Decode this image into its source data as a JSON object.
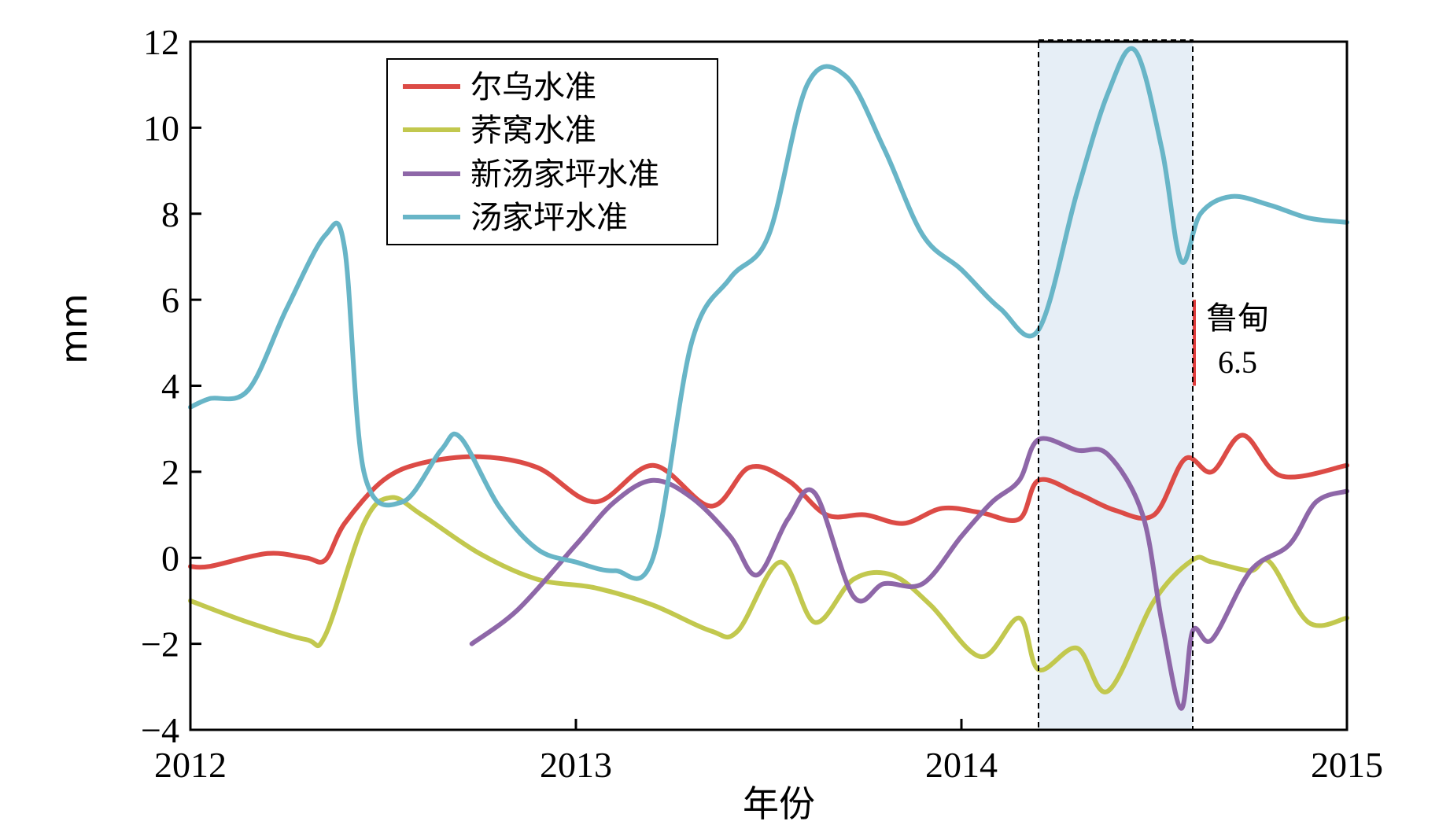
{
  "chart_data": {
    "type": "line",
    "xlabel": "年份",
    "ylabel": "mm",
    "xlim": [
      2012,
      2015
    ],
    "ylim": [
      -4,
      12
    ],
    "xticks": [
      2012,
      2013,
      2014,
      2015
    ],
    "yticks": [
      -4,
      -2,
      0,
      2,
      4,
      6,
      8,
      10,
      12
    ],
    "ytick_labels": [
      "−4",
      "−2",
      "0",
      "2",
      "4",
      "6",
      "8",
      "10",
      "12"
    ],
    "grid": false,
    "legend_position": "top-left",
    "highlight": {
      "x_start": 2014.2,
      "x_end": 2014.6,
      "color": "#e6eef6"
    },
    "annotation": {
      "label": "鲁甸",
      "value": "6.5",
      "x": 2014.6,
      "y_from": 4.0,
      "y_to": 6.0,
      "color": "#e03c3c"
    },
    "series": [
      {
        "name": "尔乌水准",
        "color": "#dc4b46",
        "points": [
          [
            2012.0,
            -0.2
          ],
          [
            2012.05,
            -0.2
          ],
          [
            2012.2,
            0.1
          ],
          [
            2012.3,
            0.0
          ],
          [
            2012.35,
            -0.05
          ],
          [
            2012.4,
            0.8
          ],
          [
            2012.5,
            1.8
          ],
          [
            2012.6,
            2.2
          ],
          [
            2012.75,
            2.35
          ],
          [
            2012.9,
            2.1
          ],
          [
            2013.05,
            1.3
          ],
          [
            2013.2,
            2.15
          ],
          [
            2013.35,
            1.2
          ],
          [
            2013.45,
            2.1
          ],
          [
            2013.55,
            1.8
          ],
          [
            2013.65,
            1.0
          ],
          [
            2013.75,
            1.0
          ],
          [
            2013.85,
            0.8
          ],
          [
            2013.95,
            1.15
          ],
          [
            2014.05,
            1.05
          ],
          [
            2014.15,
            0.9
          ],
          [
            2014.2,
            1.8
          ],
          [
            2014.3,
            1.5
          ],
          [
            2014.4,
            1.1
          ],
          [
            2014.5,
            1.0
          ],
          [
            2014.58,
            2.3
          ],
          [
            2014.65,
            2.0
          ],
          [
            2014.73,
            2.85
          ],
          [
            2014.83,
            1.9
          ],
          [
            2015.0,
            2.15
          ]
        ]
      },
      {
        "name": "荞窝水准",
        "color": "#c2c84e",
        "points": [
          [
            2012.0,
            -1.0
          ],
          [
            2012.15,
            -1.5
          ],
          [
            2012.3,
            -1.9
          ],
          [
            2012.35,
            -1.8
          ],
          [
            2012.45,
            0.8
          ],
          [
            2012.52,
            1.4
          ],
          [
            2012.6,
            1.0
          ],
          [
            2012.75,
            0.1
          ],
          [
            2012.9,
            -0.5
          ],
          [
            2013.05,
            -0.7
          ],
          [
            2013.2,
            -1.1
          ],
          [
            2013.35,
            -1.7
          ],
          [
            2013.42,
            -1.7
          ],
          [
            2013.53,
            -0.1
          ],
          [
            2013.62,
            -1.5
          ],
          [
            2013.72,
            -0.5
          ],
          [
            2013.82,
            -0.4
          ],
          [
            2013.92,
            -1.1
          ],
          [
            2014.05,
            -2.3
          ],
          [
            2014.15,
            -1.4
          ],
          [
            2014.2,
            -2.6
          ],
          [
            2014.3,
            -2.1
          ],
          [
            2014.38,
            -3.1
          ],
          [
            2014.5,
            -1.0
          ],
          [
            2014.6,
            -0.05
          ],
          [
            2014.65,
            -0.1
          ],
          [
            2014.75,
            -0.3
          ],
          [
            2014.8,
            -0.1
          ],
          [
            2014.9,
            -1.5
          ],
          [
            2015.0,
            -1.4
          ]
        ]
      },
      {
        "name": "新汤家坪水准",
        "color": "#8e67a8",
        "points": [
          [
            2012.73,
            -2.0
          ],
          [
            2012.85,
            -1.2
          ],
          [
            2013.0,
            0.3
          ],
          [
            2013.1,
            1.3
          ],
          [
            2013.2,
            1.8
          ],
          [
            2013.3,
            1.4
          ],
          [
            2013.4,
            0.5
          ],
          [
            2013.47,
            -0.4
          ],
          [
            2013.55,
            0.9
          ],
          [
            2013.62,
            1.5
          ],
          [
            2013.72,
            -0.9
          ],
          [
            2013.8,
            -0.6
          ],
          [
            2013.9,
            -0.6
          ],
          [
            2014.0,
            0.5
          ],
          [
            2014.08,
            1.3
          ],
          [
            2014.15,
            1.8
          ],
          [
            2014.2,
            2.75
          ],
          [
            2014.3,
            2.5
          ],
          [
            2014.38,
            2.4
          ],
          [
            2014.47,
            1.0
          ],
          [
            2014.52,
            -1.5
          ],
          [
            2014.57,
            -3.5
          ],
          [
            2014.6,
            -1.7
          ],
          [
            2014.65,
            -1.9
          ],
          [
            2014.75,
            -0.3
          ],
          [
            2014.85,
            0.3
          ],
          [
            2014.92,
            1.3
          ],
          [
            2015.0,
            1.55
          ]
        ]
      },
      {
        "name": "汤家坪水准",
        "color": "#68b5c7",
        "points": [
          [
            2012.0,
            3.5
          ],
          [
            2012.05,
            3.7
          ],
          [
            2012.15,
            3.9
          ],
          [
            2012.25,
            5.8
          ],
          [
            2012.35,
            7.5
          ],
          [
            2012.4,
            7.2
          ],
          [
            2012.45,
            2.0
          ],
          [
            2012.55,
            1.3
          ],
          [
            2012.65,
            2.5
          ],
          [
            2012.7,
            2.8
          ],
          [
            2012.8,
            1.2
          ],
          [
            2012.9,
            0.2
          ],
          [
            2013.0,
            -0.1
          ],
          [
            2013.1,
            -0.3
          ],
          [
            2013.2,
            0.0
          ],
          [
            2013.3,
            5.0
          ],
          [
            2013.4,
            6.5
          ],
          [
            2013.5,
            7.5
          ],
          [
            2013.6,
            11.0
          ],
          [
            2013.7,
            11.2
          ],
          [
            2013.8,
            9.5
          ],
          [
            2013.9,
            7.5
          ],
          [
            2014.0,
            6.7
          ],
          [
            2014.1,
            5.8
          ],
          [
            2014.2,
            5.3
          ],
          [
            2014.3,
            8.5
          ],
          [
            2014.38,
            10.8
          ],
          [
            2014.45,
            11.8
          ],
          [
            2014.52,
            9.5
          ],
          [
            2014.57,
            6.9
          ],
          [
            2014.62,
            8.0
          ],
          [
            2014.7,
            8.4
          ],
          [
            2014.8,
            8.2
          ],
          [
            2014.9,
            7.9
          ],
          [
            2015.0,
            7.8
          ]
        ]
      }
    ]
  }
}
